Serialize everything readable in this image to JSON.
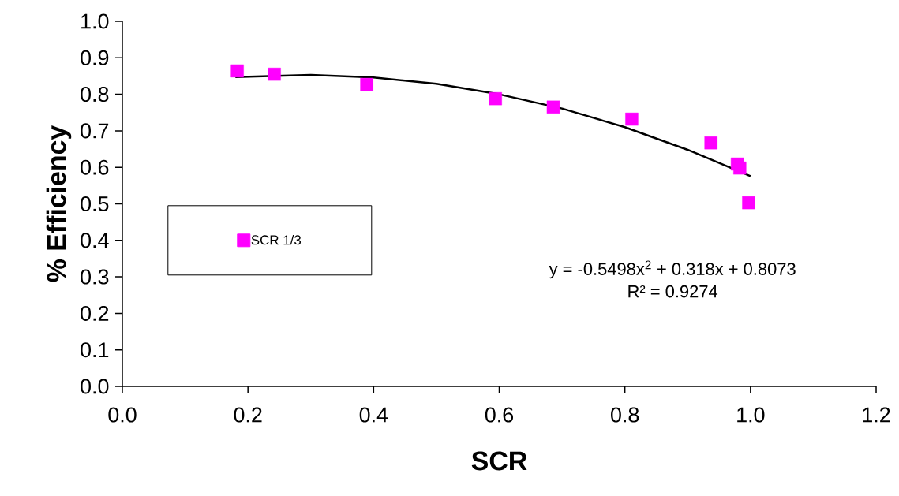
{
  "chart_data": {
    "type": "scatter",
    "xlabel": "SCR",
    "ylabel": "% Efficiency",
    "series": [
      {
        "name": "SCR 1/3",
        "color": "#ff00ff",
        "marker": "square",
        "x": [
          0.183,
          0.242,
          0.389,
          0.594,
          0.686,
          0.811,
          0.937,
          0.979,
          0.983,
          0.997
        ],
        "values": [
          0.864,
          0.855,
          0.827,
          0.788,
          0.765,
          0.732,
          0.667,
          0.609,
          0.598,
          0.503
        ]
      },
      {
        "type": "line",
        "color": "#000000",
        "marker": "none",
        "x": [
          0.18,
          0.3,
          0.4,
          0.5,
          0.6,
          0.7,
          0.8,
          0.9,
          1.0
        ],
        "values": [
          0.847,
          0.853,
          0.846,
          0.829,
          0.8,
          0.761,
          0.71,
          0.648,
          0.576
        ]
      }
    ],
    "xlim": [
      0,
      1.2
    ],
    "ylim": [
      0,
      1.0
    ],
    "xticks": [
      {
        "value": 0,
        "label": "0.0"
      },
      0.2,
      0.4,
      0.6,
      0.8,
      {
        "value": 1.0,
        "label": "1.0"
      },
      1.2
    ],
    "yticks": [
      {
        "value": 0,
        "label": "0.0"
      },
      0.1,
      0.2,
      0.3,
      0.4,
      0.5,
      0.6,
      0.7,
      0.8,
      0.9,
      {
        "value": 1.0,
        "label": "1.0"
      }
    ],
    "annotations": [
      "y = -0.5498x$^{2}$ + 0.318x + 0.8073",
      "R² = 0.9274"
    ],
    "legend": "left",
    "grid": false
  }
}
